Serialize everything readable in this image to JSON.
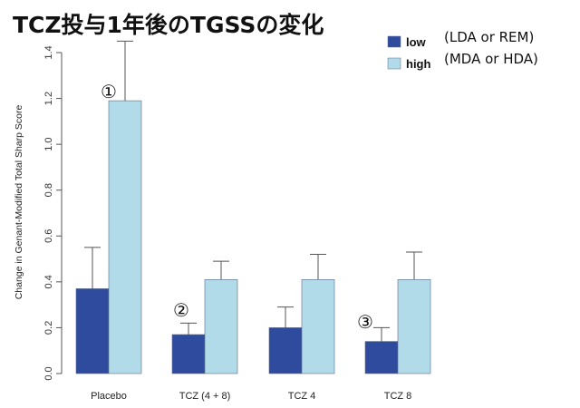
{
  "title": "TCZ投与1年後のTGSSの変化",
  "colors": {
    "low": "#2f4b9e",
    "high": "#b2dbe9",
    "axis": "#555555",
    "error": "#555555"
  },
  "legend_notes": {
    "low": "(LDA or REM)",
    "high": "(MDA or HDA)"
  },
  "chart_data": {
    "type": "bar",
    "ylabel": "Change in Genant-Modified Total Sharp Score",
    "xlabel": "",
    "ylim": [
      0,
      1.4
    ],
    "yticks": [
      "0.0",
      "0.2",
      "0.4",
      "0.6",
      "0.8",
      "1.0",
      "1.2",
      "1.4"
    ],
    "categories": [
      "Placebo",
      "TCZ (4 + 8)",
      "TCZ 4",
      "TCZ 8"
    ],
    "series": [
      {
        "name": "low",
        "values": [
          0.37,
          0.17,
          0.2,
          0.14
        ],
        "error_upper": [
          0.55,
          0.22,
          0.29,
          0.2
        ]
      },
      {
        "name": "high",
        "values": [
          1.19,
          0.41,
          0.41,
          0.41
        ],
        "error_upper": [
          1.45,
          0.49,
          0.52,
          0.53
        ]
      }
    ],
    "legend_position": "top-right",
    "grid": false,
    "annotations": [
      "①",
      "②",
      "③"
    ]
  }
}
